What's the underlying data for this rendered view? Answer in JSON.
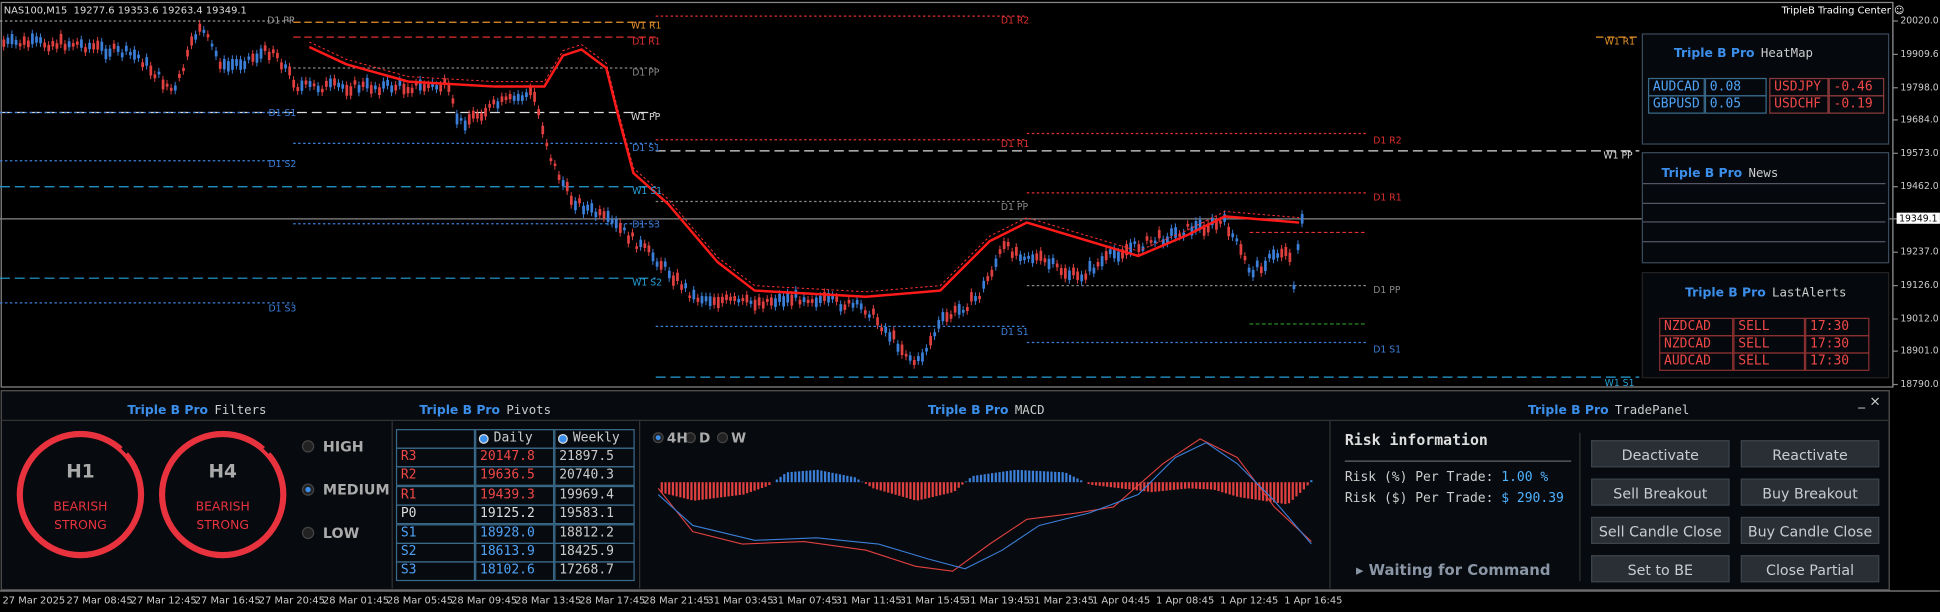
{
  "header": {
    "symbol": "NAS100,M15",
    "ohlc": "19277.6 19353.6 19263.4 19349.1",
    "platform": "TripleB Trading Center"
  },
  "price_axis": [
    "20020.0",
    "19909.6",
    "19798.0",
    "19684.0",
    "19573.0",
    "19462.0",
    "19349.1",
    "19237.0",
    "19126.0",
    "19012.0",
    "18901.0",
    "18790.0"
  ],
  "time_axis": [
    "27 Mar 2025",
    "27 Mar 08:45",
    "27 Mar 12:45",
    "27 Mar 16:45",
    "27 Mar 20:45",
    "28 Mar 01:45",
    "28 Mar 05:45",
    "28 Mar 09:45",
    "28 Mar 13:45",
    "28 Mar 17:45",
    "28 Mar 21:45",
    "31 Mar 03:45",
    "31 Mar 07:45",
    "31 Mar 11:45",
    "31 Mar 15:45",
    "31 Mar 19:45",
    "31 Mar 23:45",
    "1 Apr 04:45",
    "1 Apr 08:45",
    "1 Apr 12:45",
    "1 Apr 16:45"
  ],
  "levels": [
    "D1 PP",
    "W1 R1",
    "D1 R2",
    "D1 R1",
    "D1 PP",
    "W1 PP",
    "D1 S1",
    "D1 S1",
    "D1 S2",
    "W1 S1",
    "D1 S3",
    "W1 S2",
    "D1 S3",
    "W1 R1",
    "D1 R1",
    "W1 PP",
    "D1 R2",
    "D1 R1",
    "D1 PP",
    "D1 PP",
    "D1 S1",
    "D1 S1",
    "W1 S1"
  ],
  "heatmap": {
    "brand": "Triple B Pro",
    "title": "HeatMap",
    "rows": [
      [
        "AUDCAD",
        "0.08",
        "USDJPY",
        "-0.46"
      ],
      [
        "GBPUSD",
        "0.05",
        "USDCHF",
        "-0.19"
      ]
    ]
  },
  "news": {
    "brand": "Triple B Pro",
    "title": "News"
  },
  "alerts": {
    "brand": "Triple B Pro",
    "title": "LastAlerts",
    "rows": [
      [
        "NZDCAD",
        "SELL",
        "17:30"
      ],
      [
        "NZDCAD",
        "SELL",
        "17:30"
      ],
      [
        "AUDCAD",
        "SELL",
        "17:30"
      ]
    ]
  },
  "filters": {
    "brand": "Triple B Pro",
    "title": "Filters",
    "gauges": [
      {
        "tf": "H1",
        "l1": "BEARISH",
        "l2": "STRONG"
      },
      {
        "tf": "H4",
        "l1": "BEARISH",
        "l2": "STRONG"
      }
    ],
    "options": [
      "HIGH",
      "MEDIUM",
      "LOW"
    ]
  },
  "pivots": {
    "brand": "Triple B Pro",
    "title": "Pivots",
    "columns": [
      "Daily",
      "Weekly"
    ],
    "rows": [
      [
        "R3",
        "20147.8",
        "21897.5"
      ],
      [
        "R2",
        "19636.5",
        "20740.3"
      ],
      [
        "R1",
        "19439.3",
        "19969.4"
      ],
      [
        "P0",
        "19125.2",
        "19583.1"
      ],
      [
        "S1",
        "18928.0",
        "18812.2"
      ],
      [
        "S2",
        "18613.9",
        "18425.9"
      ],
      [
        "S3",
        "18102.6",
        "17268.7"
      ]
    ]
  },
  "macd": {
    "brand": "Triple B Pro",
    "title": "MACD",
    "timeframes": [
      "4H",
      "D",
      "W"
    ]
  },
  "trade": {
    "brand": "Triple B Pro",
    "title": "TradePanel",
    "risk_title": "Risk information",
    "risk_pct_label": "Risk (%) Per Trade:",
    "risk_pct": "1.00 %",
    "risk_usd_label": "Risk ($) Per Trade:",
    "risk_usd": "$ 290.39",
    "status": "Waiting for Command",
    "buttons": [
      "Deactivate",
      "Reactivate",
      "Sell Breakout",
      "Buy Breakout",
      "Sell Candle Close",
      "Buy Candle Close",
      "Set to BE",
      "Close Partial"
    ]
  }
}
